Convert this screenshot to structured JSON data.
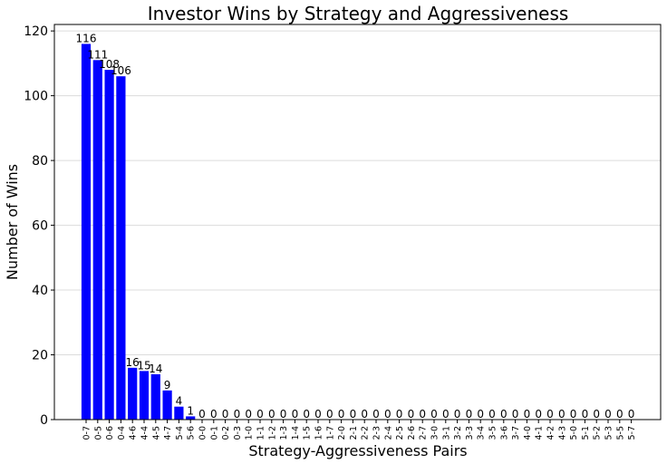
{
  "chart_data": {
    "type": "bar",
    "title": "Investor Wins by Strategy and Aggressiveness",
    "xlabel": "Strategy-Aggressiveness Pairs",
    "ylabel": "Number of Wins",
    "ylim": [
      0,
      122
    ],
    "yticks": [
      0,
      20,
      40,
      60,
      80,
      100,
      120
    ],
    "grid": "horizontal",
    "bar_color": "#0000ff",
    "categories": [
      "0-7",
      "0-5",
      "0-6",
      "0-4",
      "4-6",
      "4-4",
      "4-5",
      "4-7",
      "5-4",
      "5-6",
      "0-0",
      "0-1",
      "0-2",
      "0-3",
      "1-0",
      "1-1",
      "1-2",
      "1-3",
      "1-4",
      "1-5",
      "1-6",
      "1-7",
      "2-0",
      "2-1",
      "2-2",
      "2-3",
      "2-4",
      "2-5",
      "2-6",
      "2-7",
      "3-0",
      "3-1",
      "3-2",
      "3-3",
      "3-4",
      "3-5",
      "3-6",
      "3-7",
      "4-0",
      "4-1",
      "4-2",
      "4-3",
      "5-0",
      "5-1",
      "5-2",
      "5-3",
      "5-5",
      "5-7"
    ],
    "values": [
      116,
      111,
      108,
      106,
      16,
      15,
      14,
      9,
      4,
      1,
      0,
      0,
      0,
      0,
      0,
      0,
      0,
      0,
      0,
      0,
      0,
      0,
      0,
      0,
      0,
      0,
      0,
      0,
      0,
      0,
      0,
      0,
      0,
      0,
      0,
      0,
      0,
      0,
      0,
      0,
      0,
      0,
      0,
      0,
      0,
      0,
      0,
      0
    ]
  }
}
